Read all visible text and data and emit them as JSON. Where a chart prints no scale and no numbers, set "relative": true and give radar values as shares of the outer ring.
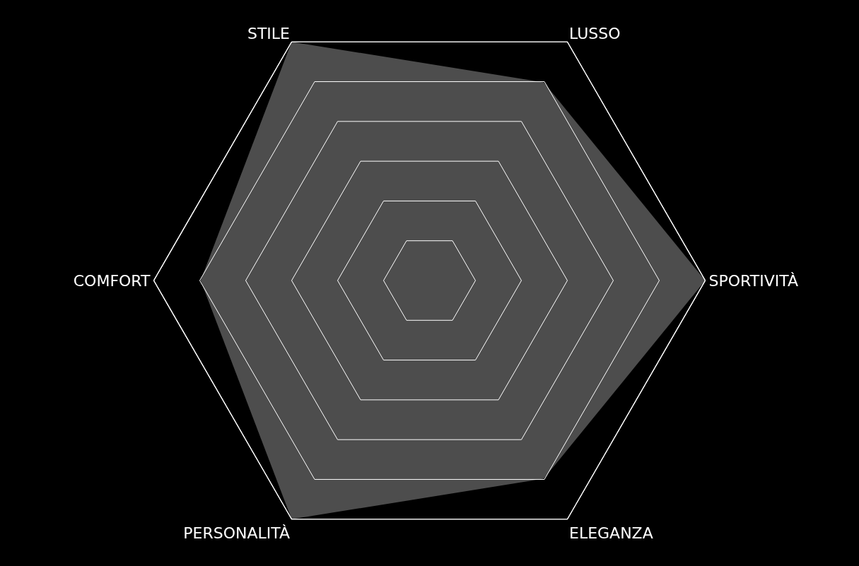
{
  "chart_data": {
    "type": "radar",
    "relative": true,
    "grid": true,
    "categories": [
      "LUSSO",
      "SPORTIVITÀ",
      "ELEGANZA",
      "PERSONALITÀ",
      "COMFORT",
      "STILE"
    ],
    "series": [
      {
        "color": "#4d4d4d",
        "values": [
          0.83,
          1,
          0.83,
          1,
          0.83,
          1
        ]
      }
    ]
  }
}
